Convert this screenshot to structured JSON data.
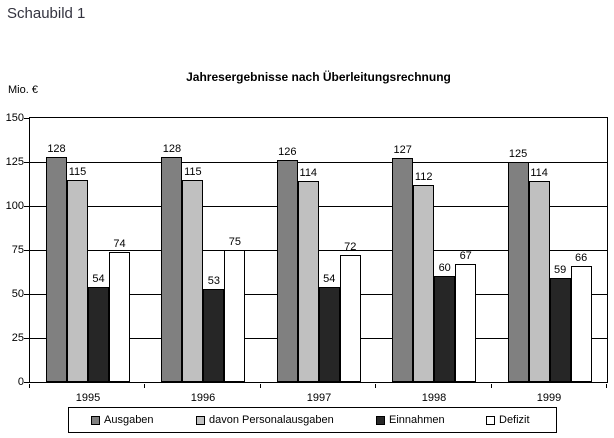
{
  "header": {
    "label": "Schaubild 1"
  },
  "chart_data": {
    "type": "bar",
    "title": "Jahresergebnisse nach Überleitungsrechnung",
    "y_unit": "Mio. €",
    "xlabel": "",
    "ylabel": "Mio. €",
    "categories": [
      "1995",
      "1996",
      "1997",
      "1998",
      "1999"
    ],
    "series": [
      {
        "name": "Ausgaben",
        "color": "#808080",
        "values": [
          128,
          128,
          126,
          127,
          125
        ]
      },
      {
        "name": "davon Personalausgaben",
        "color": "#c0c0c0",
        "values": [
          115,
          115,
          114,
          112,
          114
        ]
      },
      {
        "name": "Einnahmen",
        "color": "#262626",
        "values": [
          54,
          53,
          54,
          60,
          59
        ]
      },
      {
        "name": "Defizit",
        "color": "#ffffff",
        "values": [
          74,
          75,
          72,
          67,
          66
        ]
      }
    ],
    "ylim": [
      0,
      150
    ],
    "y_ticks": [
      0,
      25,
      50,
      75,
      100,
      125,
      150
    ],
    "grid": true,
    "value_labels": true,
    "legend_position": "bottom"
  }
}
